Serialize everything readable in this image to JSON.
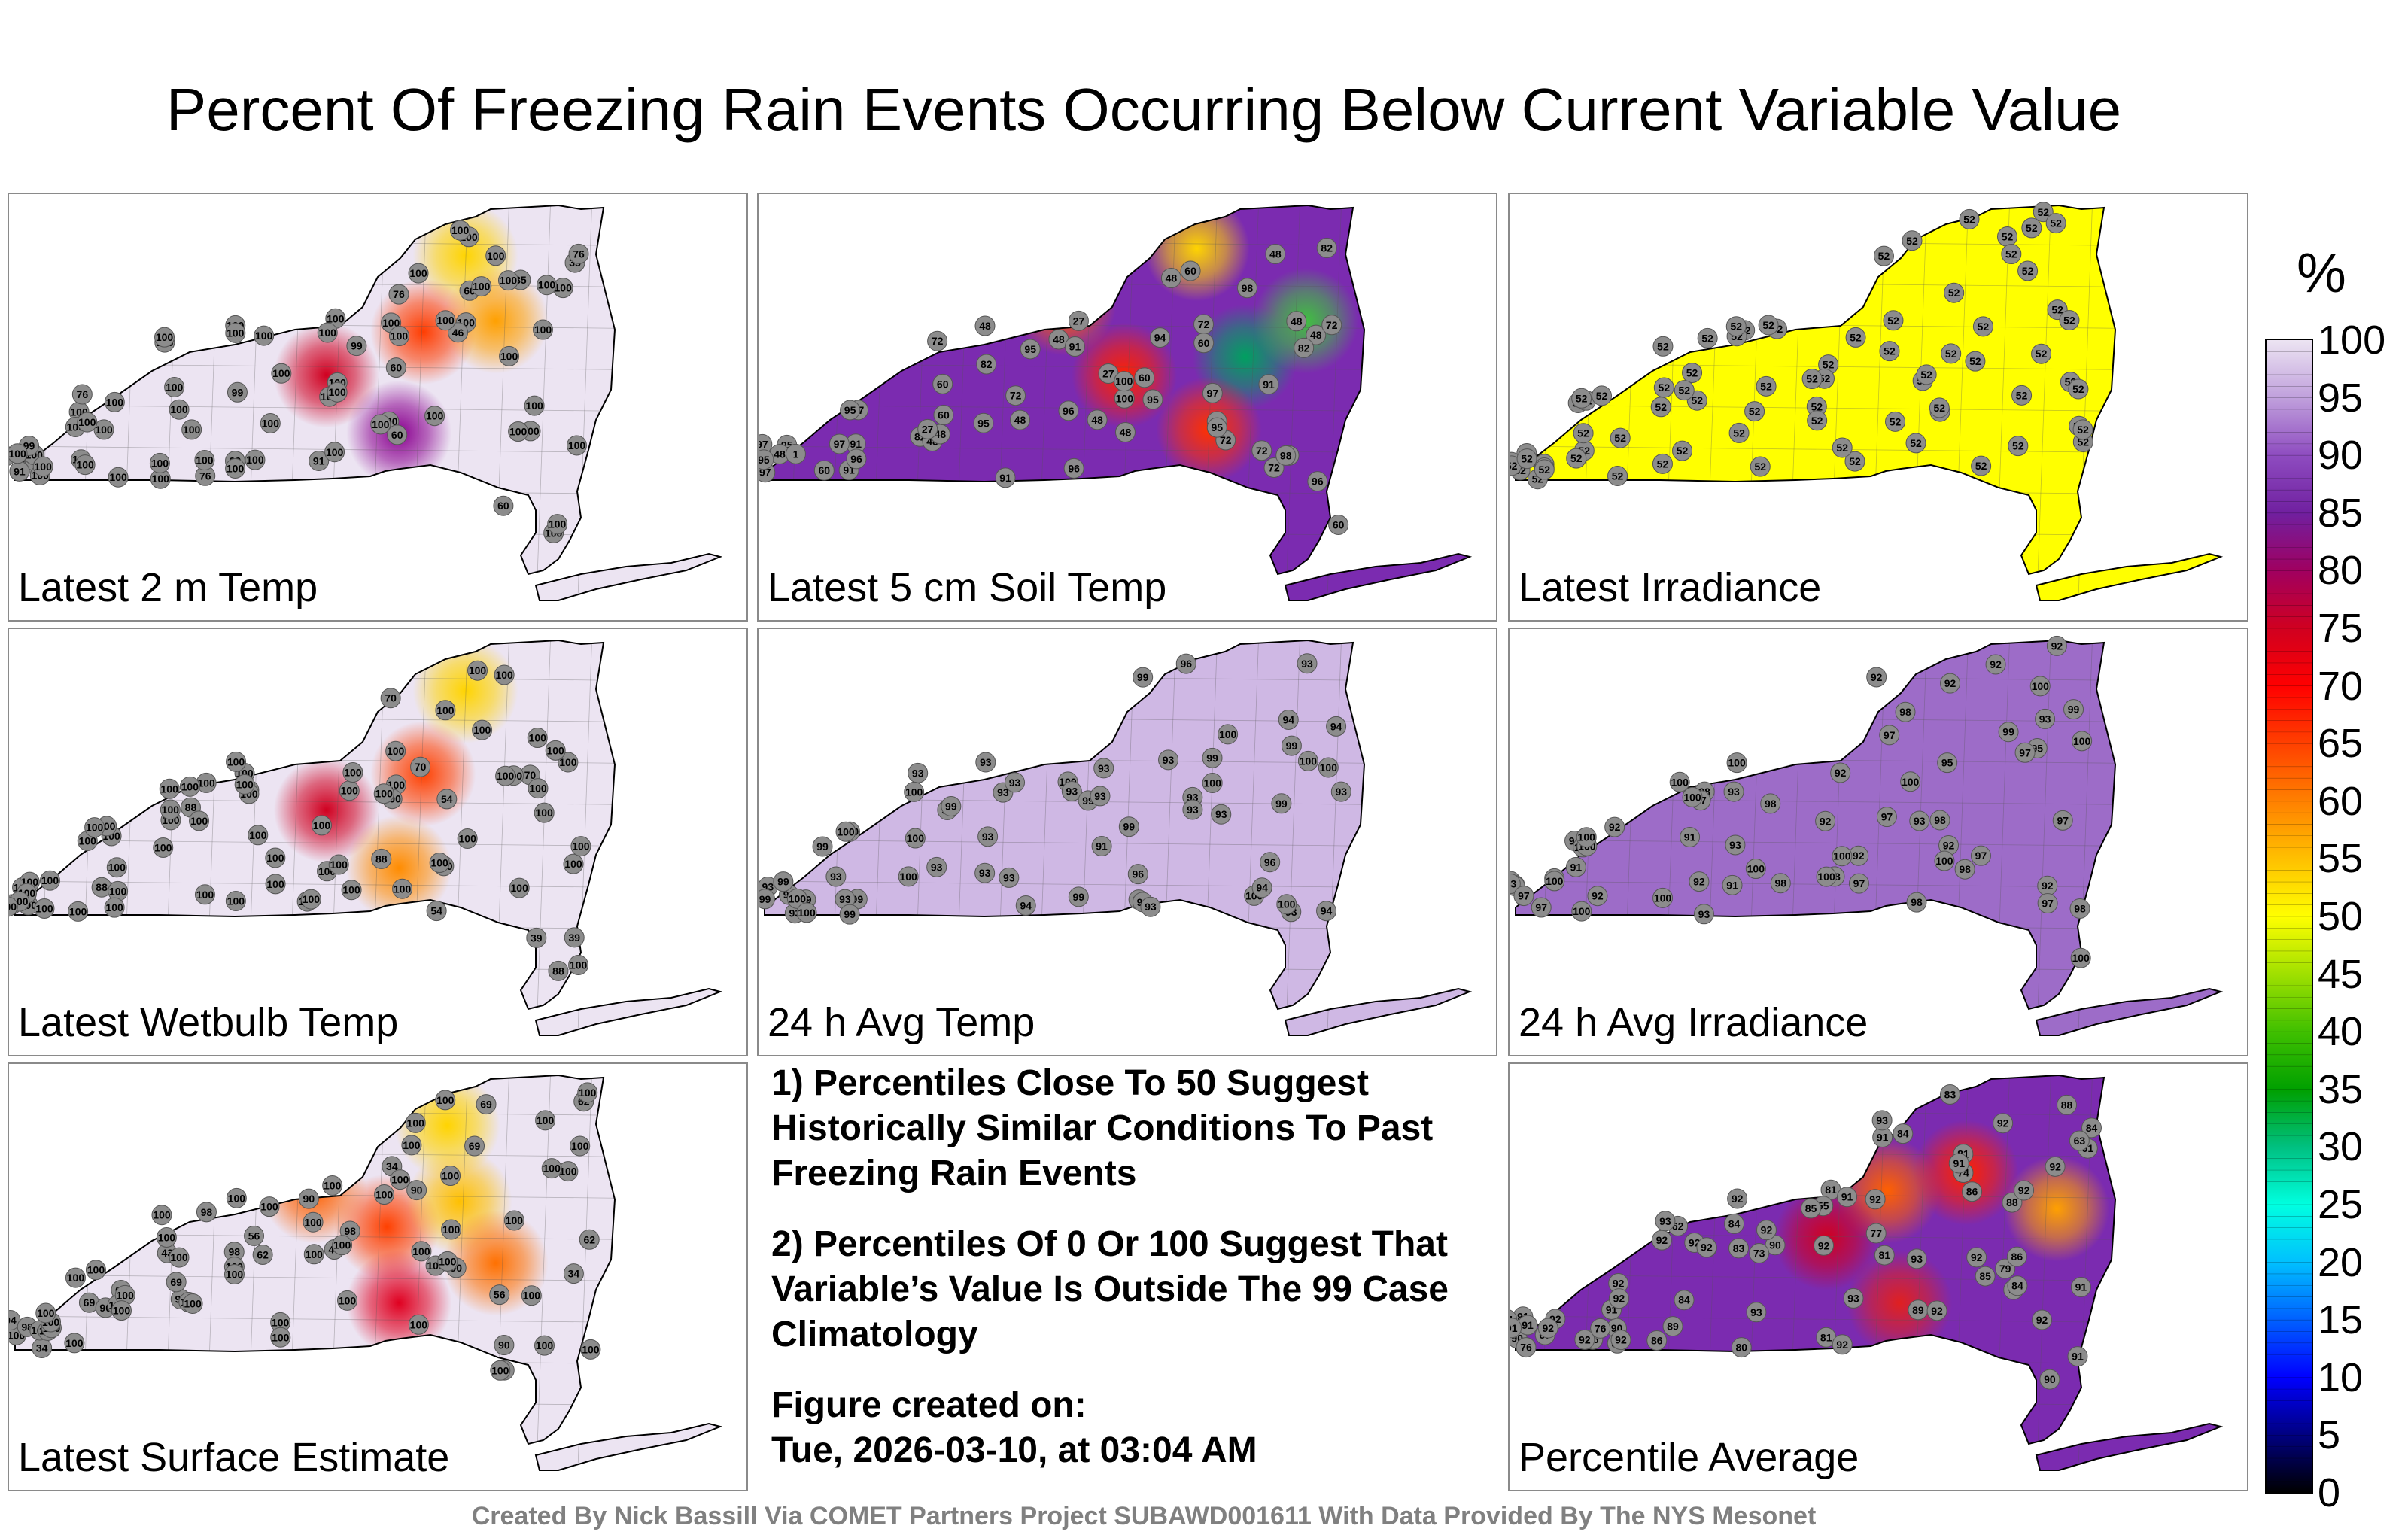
{
  "title": "Percent Of Freezing Rain Events Occurring Below Current Variable Value",
  "panels": [
    {
      "label": "Latest 2 m Temp",
      "bg": "#ece4f2",
      "stations": [
        100,
        100,
        100,
        99,
        100,
        100,
        100,
        35,
        35,
        35,
        76,
        76,
        99,
        99,
        60,
        60,
        60,
        100,
        100,
        100,
        100,
        100,
        91,
        76,
        100,
        100,
        100,
        99,
        100,
        100,
        100,
        100,
        60,
        46,
        100,
        76,
        91,
        100,
        100,
        100,
        100,
        100,
        100,
        100,
        100,
        100,
        100,
        100,
        100,
        100,
        100,
        100,
        100,
        100,
        100,
        100,
        100,
        100,
        100,
        100,
        100,
        100,
        100,
        100,
        100,
        100,
        100,
        100,
        100,
        100,
        100,
        100,
        100,
        100,
        100,
        100
      ],
      "hot": [
        [
          0.73,
          0.17,
          "#ffd400"
        ],
        [
          0.66,
          0.38,
          "#ff3c00"
        ],
        [
          0.5,
          0.5,
          "#d00020"
        ],
        [
          0.62,
          0.66,
          "#8a0090"
        ],
        [
          0.78,
          0.35,
          "#ffa000"
        ]
      ]
    },
    {
      "label": "Latest 5 cm Soil Temp",
      "bg": "#7b2bb0",
      "stations": [
        95,
        91,
        82,
        72,
        27,
        48,
        72,
        48,
        27,
        91,
        91,
        48,
        82,
        27,
        48,
        72,
        72,
        48,
        48,
        27,
        48,
        91,
        48,
        94,
        60,
        48,
        60,
        1,
        96,
        60,
        48,
        48,
        60,
        60,
        72,
        82,
        91,
        95,
        60,
        95,
        96,
        100,
        97,
        98,
        96,
        97,
        97,
        72,
        95,
        96,
        95,
        94,
        91,
        82,
        97,
        60,
        27,
        48,
        91,
        100,
        95,
        98,
        72,
        95
      ],
      "hot": [
        [
          0.7,
          0.15,
          "#ffd400"
        ],
        [
          0.78,
          0.45,
          "#00a060"
        ],
        [
          0.58,
          0.5,
          "#ff2000"
        ],
        [
          0.48,
          0.3,
          "#ff6000"
        ],
        [
          0.72,
          0.65,
          "#ff3000"
        ],
        [
          0.88,
          0.35,
          "#40c040"
        ]
      ]
    },
    {
      "label": "Latest Irradiance",
      "bg": "#ffff00",
      "stations": [
        52,
        52,
        52,
        52,
        52,
        52,
        52,
        52,
        52,
        52,
        52,
        52,
        52,
        52,
        52,
        52,
        52,
        52,
        52,
        52,
        52,
        52,
        52,
        52,
        52,
        52,
        52,
        52,
        52,
        52,
        52,
        52,
        52,
        52,
        52,
        52,
        52,
        52,
        52,
        52,
        52,
        52,
        52,
        52,
        52,
        52,
        52,
        52,
        52,
        52,
        52,
        52,
        52,
        52,
        52,
        52,
        52,
        52,
        52,
        52,
        52,
        52,
        52,
        52,
        52,
        52,
        52,
        52,
        52,
        52,
        52,
        52,
        52,
        52,
        52,
        52
      ],
      "hot": []
    },
    {
      "label": "Latest Wetbulb Temp",
      "bg": "#ece4f2",
      "stations": [
        100,
        100,
        100,
        100,
        100,
        100,
        100,
        39,
        39,
        39,
        88,
        88,
        100,
        100,
        70,
        54,
        70,
        100,
        100,
        100,
        100,
        100,
        100,
        88,
        100,
        100,
        100,
        100,
        100,
        100,
        100,
        100,
        70,
        54,
        100,
        88,
        100,
        100,
        100,
        100,
        100,
        100,
        100,
        100,
        100,
        100,
        100,
        100,
        100,
        100,
        100,
        100,
        100,
        100,
        100,
        100,
        100,
        100,
        100,
        100,
        100,
        100,
        100,
        100,
        100,
        100,
        100,
        100,
        100,
        100,
        100,
        100,
        100,
        100,
        100,
        100
      ],
      "hot": [
        [
          0.73,
          0.17,
          "#ffd400"
        ],
        [
          0.66,
          0.4,
          "#ff4000"
        ],
        [
          0.5,
          0.5,
          "#d00020"
        ],
        [
          0.62,
          0.66,
          "#ff8c00"
        ]
      ]
    },
    {
      "label": "24 h Avg Temp",
      "bg": "#cfb8e4",
      "stations": [
        99,
        99,
        93,
        93,
        100,
        93,
        99,
        93,
        93,
        93,
        99,
        93,
        93,
        91,
        99,
        93,
        94,
        94,
        93,
        93,
        93,
        93,
        99,
        94,
        93,
        99,
        93,
        93,
        93,
        99,
        93,
        93,
        96,
        93,
        96,
        94,
        99,
        99,
        100,
        93,
        93,
        99,
        100,
        100,
        100,
        99,
        100,
        100,
        94,
        99,
        93,
        100,
        100,
        100,
        100,
        100,
        100,
        93,
        93,
        93,
        96,
        94,
        99,
        100
      ],
      "hot": []
    },
    {
      "label": "24 h Avg Irradiance",
      "bg": "#9d6cc8",
      "stations": [
        90,
        91,
        91,
        91,
        92,
        92,
        92,
        92,
        92,
        92,
        92,
        92,
        93,
        92,
        93,
        92,
        92,
        100,
        92,
        92,
        93,
        93,
        92,
        98,
        95,
        93,
        97,
        93,
        94,
        98,
        98,
        98,
        97,
        98,
        95,
        97,
        97,
        100,
        97,
        98,
        97,
        98,
        97,
        97,
        99,
        97,
        100,
        100,
        100,
        100,
        97,
        98,
        99,
        98,
        97,
        100,
        100,
        100,
        100,
        100,
        100,
        100,
        100,
        100,
        100,
        100
      ],
      "hot": []
    },
    {
      "label": "Latest Surface Estimate",
      "bg": "#ece4f2",
      "stations": [
        100,
        100,
        94,
        62,
        90,
        100,
        69,
        56,
        34,
        34,
        62,
        69,
        98,
        98,
        34,
        90,
        90,
        62,
        94,
        69,
        43,
        56,
        43,
        90,
        69,
        43,
        62,
        98,
        90,
        98,
        100,
        100,
        100,
        100,
        100,
        100,
        100,
        100,
        100,
        100,
        100,
        100,
        100,
        100,
        100,
        100,
        100,
        100,
        100,
        100,
        100,
        100,
        100,
        100,
        100,
        100,
        100,
        100,
        100,
        100,
        100,
        100,
        100,
        100,
        100,
        100,
        100,
        100,
        100,
        100,
        100,
        100,
        100,
        100,
        100,
        100
      ],
      "hot": [
        [
          0.7,
          0.17,
          "#ffd400"
        ],
        [
          0.6,
          0.45,
          "#ff4000"
        ],
        [
          0.48,
          0.35,
          "#ff6000"
        ],
        [
          0.72,
          0.38,
          "#ffc000"
        ],
        [
          0.62,
          0.66,
          "#e00020"
        ],
        [
          0.78,
          0.55,
          "#ff7000"
        ]
      ]
    },
    {
      "label": "Percentile Average",
      "bg": "#7b2bb0",
      "stations": [
        91,
        90,
        89,
        80,
        81,
        84,
        86,
        79,
        84,
        90,
        86,
        90,
        84,
        55,
        89,
        81,
        79,
        61,
        64,
        56,
        84,
        90,
        85,
        77,
        83,
        84,
        63,
        67,
        92,
        86,
        73,
        91,
        91,
        85,
        86,
        88,
        76,
        76,
        62,
        83,
        81,
        81,
        74,
        88,
        90,
        92,
        91,
        92,
        92,
        93,
        93,
        92,
        92,
        91,
        91,
        92,
        92,
        92,
        92,
        92,
        91,
        92,
        92,
        92,
        92,
        92,
        93,
        92,
        93,
        92,
        92,
        91,
        91,
        92,
        93
      ],
      "hot": [
        [
          0.6,
          0.35,
          "#ff6000"
        ],
        [
          0.73,
          0.3,
          "#ff2000"
        ],
        [
          0.5,
          0.48,
          "#d00020"
        ],
        [
          0.62,
          0.66,
          "#e02020"
        ],
        [
          0.88,
          0.4,
          "#ffa000"
        ]
      ]
    }
  ],
  "notes": [
    "1) Percentiles Close To 50 Suggest Historically Similar Conditions To Past Freezing Rain Events",
    "2) Percentiles Of 0 Or 100 Suggest That Variable’s Value Is Outside The 99 Case Climatology",
    "Figure created on:",
    "Tue, 2026-03-10, at 03:04 AM"
  ],
  "credit": "Created By Nick Bassill Via COMET Partners Project SUBAWD001611 With Data Provided By The NYS Mesonet",
  "colorbar": {
    "unit": "%",
    "ticks": [
      "100",
      "95",
      "90",
      "85",
      "80",
      "75",
      "70",
      "65",
      "60",
      "55",
      "50",
      "45",
      "40",
      "35",
      "30",
      "25",
      "20",
      "15",
      "10",
      "5",
      "0"
    ],
    "stops": [
      "#000000",
      "#000080",
      "#0000ff",
      "#0060ff",
      "#00c0ff",
      "#00ffe0",
      "#00c080",
      "#00a000",
      "#40c000",
      "#a0e000",
      "#ffff00",
      "#ffc000",
      "#ff8000",
      "#ff4000",
      "#ff0000",
      "#d00020",
      "#a00060",
      "#7020a0",
      "#8e4cc0",
      "#c0a0dc",
      "#ece4f2"
    ]
  }
}
